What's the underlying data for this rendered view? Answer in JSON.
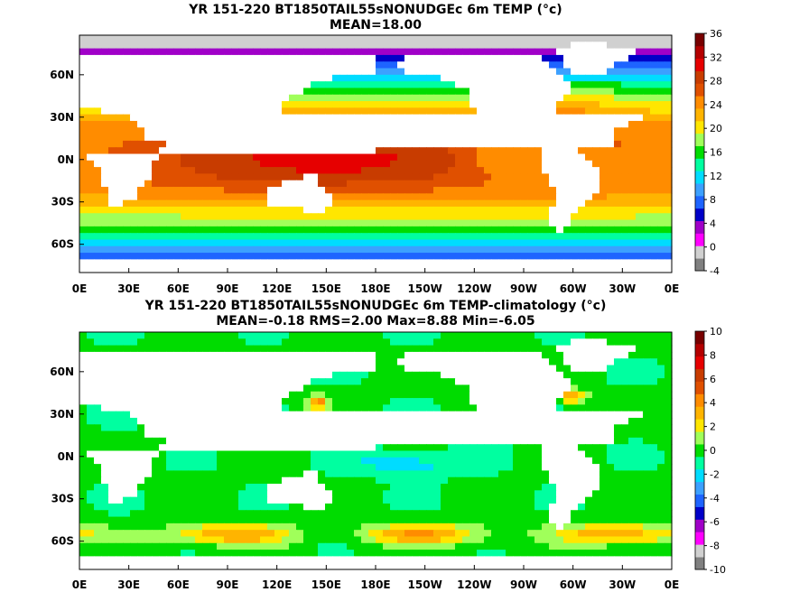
{
  "panels": [
    {
      "title_line1": "YR 151-220 BT1850TAIL55sNONUDGEc 6m TEMP (°c)",
      "title_line2": "MEAN=18.00"
    },
    {
      "title_line1": "YR 151-220 BT1850TAIL55sNONUDGEc 6m TEMP-climatology (°c)",
      "title_line2": "MEAN=-0.18   RMS=2.00   Max=8.88   Min=-6.05"
    }
  ],
  "chart_data": [
    {
      "type": "heatmap",
      "title": "YR 151-220 BT1850TAIL55sNONUDGEc 6m TEMP (°c)",
      "subtitle": "MEAN=18.00",
      "x_ticks": [
        "0E",
        "30E",
        "60E",
        "90E",
        "120E",
        "150E",
        "180E",
        "150W",
        "120W",
        "90W",
        "60W",
        "30W",
        "0E"
      ],
      "y_ticks": [
        "60N",
        "30N",
        "0N",
        "30S",
        "60S"
      ],
      "colorbar": {
        "ticks": [
          "36",
          "32",
          "28",
          "24",
          "20",
          "16",
          "12",
          "8",
          "4",
          "0",
          "-4"
        ],
        "range": [
          -4,
          36
        ],
        "colors": [
          "#808080",
          "#d0d0d0",
          "#ff00ff",
          "#a000c8",
          "#0000c8",
          "#1e64ff",
          "#3ca0ff",
          "#00dcff",
          "#00ffa0",
          "#00dc00",
          "#a0ff5a",
          "#ffe600",
          "#ffb400",
          "#ff8c00",
          "#e05000",
          "#c83c00",
          "#e60000",
          "#b40000",
          "#780000"
        ]
      },
      "mean": 18.0
    },
    {
      "type": "heatmap",
      "title": "YR 151-220 BT1850TAIL55sNONUDGEc 6m TEMP-climatology (°c)",
      "subtitle": "MEAN=-0.18   RMS=2.00   Max=8.88   Min=-6.05",
      "x_ticks": [
        "0E",
        "30E",
        "60E",
        "90E",
        "120E",
        "150E",
        "180E",
        "150W",
        "120W",
        "90W",
        "60W",
        "30W",
        "0E"
      ],
      "y_ticks": [
        "60N",
        "30N",
        "0N",
        "30S",
        "60S"
      ],
      "colorbar": {
        "ticks": [
          "10",
          "8",
          "6",
          "4",
          "2",
          "0",
          "-2",
          "-4",
          "-6",
          "-8",
          "-10"
        ],
        "range": [
          -10,
          10
        ],
        "colors": [
          "#808080",
          "#d0d0d0",
          "#ff00ff",
          "#a000c8",
          "#0000c8",
          "#1e64ff",
          "#3ca0ff",
          "#00dcff",
          "#00ffa0",
          "#00dc00",
          "#a0ff5a",
          "#ffe600",
          "#ffb400",
          "#ff8c00",
          "#e05000",
          "#c83c00",
          "#e60000",
          "#b40000",
          "#780000"
        ]
      },
      "mean": -0.18,
      "rms": 2.0,
      "max": 8.88,
      "min": -6.05
    }
  ]
}
